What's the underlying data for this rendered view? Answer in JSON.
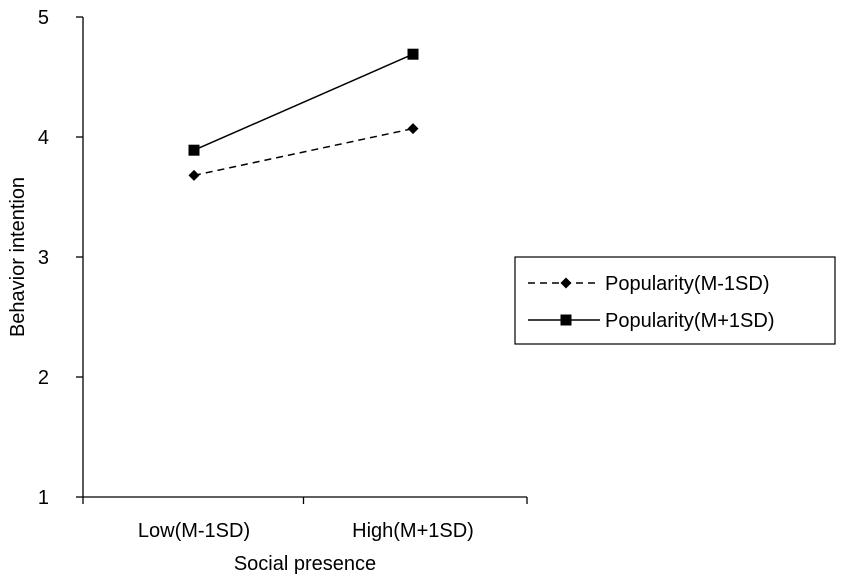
{
  "chart_data": {
    "type": "line",
    "title": "",
    "xlabel": "Social presence",
    "ylabel": "Behavior intention",
    "categories": [
      "Low(M-1SD)",
      "High(M+1SD)"
    ],
    "ylim": [
      1,
      5
    ],
    "yticks": [
      "1",
      "2",
      "3",
      "4",
      "5"
    ],
    "grid": false,
    "legend_position": "right",
    "series": [
      {
        "name": "Popularity(M-1SD)",
        "values": [
          3.68,
          4.07
        ],
        "line_style": "dashed",
        "marker": "diamond",
        "color": "#000000"
      },
      {
        "name": "Popularity(M+1SD)",
        "values": [
          3.89,
          4.69
        ],
        "line_style": "solid",
        "marker": "square",
        "color": "#000000"
      }
    ]
  }
}
